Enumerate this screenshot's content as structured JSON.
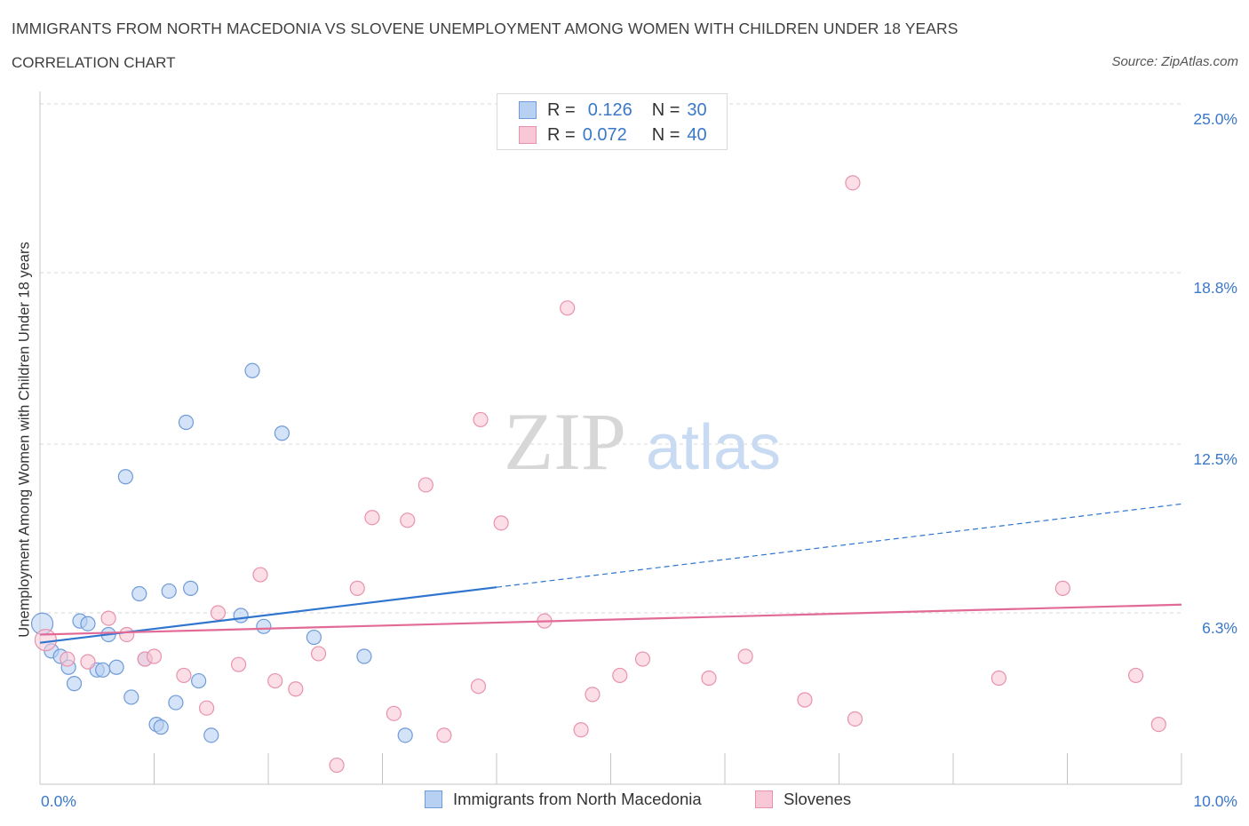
{
  "title": "IMMIGRANTS FROM NORTH MACEDONIA VS SLOVENE UNEMPLOYMENT AMONG WOMEN WITH CHILDREN UNDER 18 YEARS",
  "subtitle": "CORRELATION CHART",
  "source": "Source: ZipAtlas.com",
  "watermark": {
    "zip": "ZIP",
    "atlas": "atlas"
  },
  "legend_top": {
    "rows": [
      {
        "r_label": "R =",
        "r_value": "0.126",
        "n_label": "N =",
        "n_value": "30"
      },
      {
        "r_label": "R =",
        "r_value": "0.072",
        "n_label": "N =",
        "n_value": "40"
      }
    ]
  },
  "legend_bottom": [
    "Immigrants from North Macedonia",
    "Slovenes"
  ],
  "colors": {
    "blue_fill": "#b8d0f2",
    "blue_stroke": "#6f9bd8",
    "blue_line": "#2f75cf",
    "pink_fill": "#f8c8d6",
    "pink_stroke": "#e892ad",
    "pink_line": "#e26a96",
    "axis_label": "#3a78c9",
    "grid": "#d9d9d9"
  },
  "chart_data": {
    "type": "scatter",
    "title": "IMMIGRANTS FROM NORTH MACEDONIA VS SLOVENE UNEMPLOYMENT AMONG WOMEN WITH CHILDREN UNDER 18 YEARS",
    "xlabel": "",
    "ylabel": "Unemployment Among Women with Children Under 18 years",
    "xlim": [
      0,
      10
    ],
    "ylim": [
      0,
      25
    ],
    "x_tick_labels": [
      "0.0%",
      "10.0%"
    ],
    "y_ticks": [
      6.3,
      12.5,
      18.8,
      25.0
    ],
    "y_tick_labels": [
      "6.3%",
      "12.5%",
      "18.8%",
      "25.0%"
    ],
    "grid": true,
    "legend_position": "bottom",
    "series": [
      {
        "name": "Immigrants from North Macedonia",
        "r": 0.126,
        "n": 30,
        "trend": {
          "x_start": 0,
          "y_start": 5.2,
          "x_solid_end": 4.0,
          "x_end": 10.0,
          "y_end": 10.3
        },
        "points": [
          [
            0.02,
            5.9
          ],
          [
            0.1,
            4.9
          ],
          [
            0.18,
            4.7
          ],
          [
            0.25,
            4.3
          ],
          [
            0.3,
            3.7
          ],
          [
            0.35,
            6.0
          ],
          [
            0.42,
            5.9
          ],
          [
            0.5,
            4.2
          ],
          [
            0.55,
            4.2
          ],
          [
            0.6,
            5.5
          ],
          [
            0.67,
            4.3
          ],
          [
            0.75,
            11.3
          ],
          [
            0.8,
            3.2
          ],
          [
            0.87,
            7.0
          ],
          [
            0.92,
            4.6
          ],
          [
            1.02,
            2.2
          ],
          [
            1.06,
            2.1
          ],
          [
            1.13,
            7.1
          ],
          [
            1.19,
            3.0
          ],
          [
            1.28,
            13.3
          ],
          [
            1.32,
            7.2
          ],
          [
            1.39,
            3.8
          ],
          [
            1.5,
            1.8
          ],
          [
            1.76,
            6.2
          ],
          [
            1.86,
            15.2
          ],
          [
            1.96,
            5.8
          ],
          [
            2.12,
            12.9
          ],
          [
            2.4,
            5.4
          ],
          [
            2.84,
            4.7
          ],
          [
            3.2,
            1.8
          ]
        ]
      },
      {
        "name": "Slovenes",
        "r": 0.072,
        "n": 40,
        "trend": {
          "x_start": 0,
          "y_start": 5.5,
          "x_end": 10.0,
          "y_end": 6.6
        },
        "points": [
          [
            0.05,
            5.3
          ],
          [
            0.24,
            4.6
          ],
          [
            0.42,
            4.5
          ],
          [
            0.6,
            6.1
          ],
          [
            0.76,
            5.5
          ],
          [
            0.92,
            4.6
          ],
          [
            1.0,
            4.7
          ],
          [
            1.26,
            4.0
          ],
          [
            1.46,
            2.8
          ],
          [
            1.56,
            6.3
          ],
          [
            1.74,
            4.4
          ],
          [
            1.93,
            7.7
          ],
          [
            2.06,
            3.8
          ],
          [
            2.24,
            3.5
          ],
          [
            2.44,
            4.8
          ],
          [
            2.6,
            0.7
          ],
          [
            2.78,
            7.2
          ],
          [
            2.91,
            9.8
          ],
          [
            3.1,
            2.6
          ],
          [
            3.22,
            9.7
          ],
          [
            3.38,
            11.0
          ],
          [
            3.54,
            1.8
          ],
          [
            3.84,
            3.6
          ],
          [
            3.86,
            13.4
          ],
          [
            4.04,
            9.6
          ],
          [
            4.42,
            6.0
          ],
          [
            4.62,
            17.5
          ],
          [
            4.74,
            2.0
          ],
          [
            4.84,
            3.3
          ],
          [
            5.08,
            4.0
          ],
          [
            5.28,
            4.6
          ],
          [
            5.86,
            3.9
          ],
          [
            6.18,
            4.7
          ],
          [
            6.7,
            3.1
          ],
          [
            7.12,
            22.1
          ],
          [
            7.14,
            2.4
          ],
          [
            8.4,
            3.9
          ],
          [
            8.96,
            7.2
          ],
          [
            9.6,
            4.0
          ],
          [
            9.8,
            2.2
          ]
        ]
      }
    ]
  }
}
